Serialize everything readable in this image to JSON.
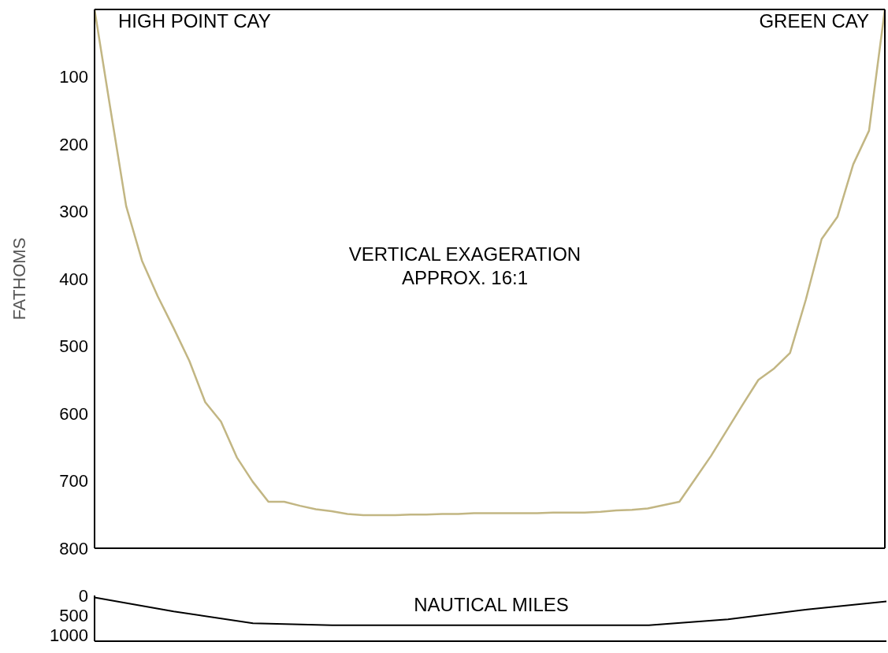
{
  "chart_data": [
    {
      "type": "line",
      "ylabel": "FATHOMS",
      "annotations": [
        "HIGH POINT CAY",
        "GREEN CAY",
        "VERTICAL EXAGERATION\nAPPROX. 16:1"
      ],
      "categories": [
        null,
        null,
        null,
        null,
        null,
        null,
        null,
        null,
        null,
        null,
        null,
        null,
        null,
        null,
        null,
        null,
        null,
        null,
        null,
        null,
        null,
        null,
        null,
        null,
        null,
        null,
        null,
        null,
        null,
        null,
        null,
        null,
        null,
        null,
        null,
        null,
        null,
        null,
        null,
        null,
        null,
        null,
        null,
        null,
        null,
        null,
        null,
        null,
        null,
        null,
        null
      ],
      "series": [
        {
          "color": "#c2b683",
          "values": [
            0,
            147,
            292,
            373,
            426,
            473,
            522,
            583,
            612,
            665,
            701,
            731,
            731,
            737,
            742,
            745,
            749,
            751,
            751,
            751,
            750,
            750,
            749,
            749,
            748,
            748,
            748,
            748,
            748,
            747,
            747,
            747,
            746,
            744,
            743,
            741,
            736,
            731,
            697,
            663,
            625,
            587,
            550,
            533,
            510,
            431,
            341,
            308,
            230,
            180,
            0
          ]
        }
      ],
      "ylim": [
        800,
        0
      ],
      "yticks": [
        100,
        200,
        300,
        400,
        500,
        600,
        700,
        800
      ],
      "grid": false,
      "legend": false,
      "marker": "none",
      "tick_labels": "y"
    },
    {
      "type": "line",
      "xlabel": "NAUTICAL MILES",
      "categories": [
        null,
        null,
        null,
        null,
        null,
        null,
        null,
        null,
        null,
        null,
        null
      ],
      "series": [
        {
          "color": "#000000",
          "values": [
            50,
            400,
            700,
            750,
            750,
            750,
            750,
            750,
            600,
            350,
            150
          ]
        }
      ],
      "ylim": [
        1150,
        0
      ],
      "yticks": [
        0,
        500,
        1000
      ],
      "grid": false,
      "legend": false,
      "marker": "none",
      "tick_labels": "y"
    }
  ]
}
